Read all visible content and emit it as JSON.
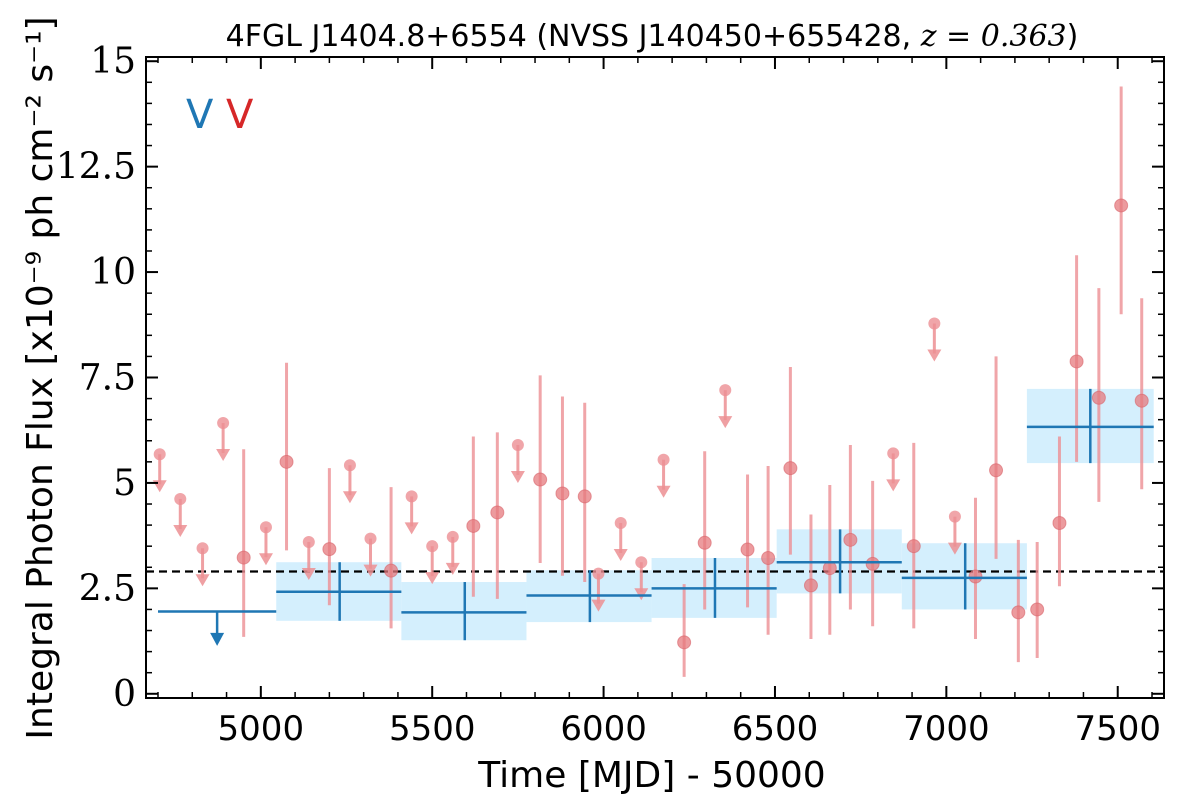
{
  "chart_data": {
    "type": "scatter",
    "title": "4FGL J1404.8+6554 (NVSS J140450+655428, z = 0.363)",
    "title_parts": {
      "main": "4FGL J1404.8+6554 (NVSS J140450+655428, ",
      "math": "z = 0.363",
      "close": ")"
    },
    "xlabel": "Time [MJD] - 50000",
    "ylabel": "Integral Photon Flux [x10⁻⁹ ph cm⁻² s⁻¹]",
    "xlim": [
      4665,
      7635
    ],
    "ylim": [
      -0.1,
      15.1
    ],
    "x_ticks": [
      5000,
      5500,
      6000,
      6500,
      7000,
      7500
    ],
    "x_tick_labels": [
      "5000",
      "5500",
      "6000",
      "6500",
      "7000",
      "7500"
    ],
    "y_ticks": [
      0,
      2.5,
      5,
      7.5,
      10,
      12.5,
      15
    ],
    "y_tick_labels": [
      "0",
      "2.5",
      "5",
      "7.5",
      "10",
      "12.5",
      "15"
    ],
    "grid": false,
    "flags": [
      {
        "text": "V",
        "color": "#1f77b4"
      },
      {
        "text": "V",
        "color": "#d62728"
      }
    ],
    "colors": {
      "blue": "#1f77b4",
      "band": "#d4effd",
      "red": "#ec8f93",
      "reference": "#000000"
    },
    "reference_line": {
      "y": 2.9,
      "style": "dashed"
    },
    "series": [
      {
        "kind": "binned",
        "bins": [
          {
            "x0": 4700,
            "x1": 5045,
            "y": 1.95,
            "upper_limit": true
          },
          {
            "x0": 5045,
            "x1": 5410,
            "y": 2.42,
            "lo": 1.73,
            "hi": 3.12,
            "xc": 5230
          },
          {
            "x0": 5410,
            "x1": 5775,
            "y": 1.93,
            "lo": 1.27,
            "hi": 2.65,
            "xc": 5595
          },
          {
            "x0": 5775,
            "x1": 6140,
            "y": 2.33,
            "lo": 1.7,
            "hi": 2.93,
            "xc": 5960
          },
          {
            "x0": 6140,
            "x1": 6505,
            "y": 2.5,
            "lo": 1.8,
            "hi": 3.22,
            "xc": 6325
          },
          {
            "x0": 6505,
            "x1": 6870,
            "y": 3.12,
            "lo": 2.38,
            "hi": 3.9,
            "xc": 6690
          },
          {
            "x0": 6870,
            "x1": 7235,
            "y": 2.75,
            "lo": 2.0,
            "hi": 3.57,
            "xc": 7055
          },
          {
            "x0": 7235,
            "x1": 7605,
            "y": 6.33,
            "lo": 5.47,
            "hi": 7.23,
            "xc": 7420
          }
        ]
      },
      {
        "kind": "points",
        "detections": [
          {
            "x": 4950,
            "y": 3.23,
            "lo": 1.35,
            "hi": 5.8
          },
          {
            "x": 5075,
            "y": 5.5,
            "lo": 3.4,
            "hi": 7.85
          },
          {
            "x": 5200,
            "y": 3.43,
            "lo": 2.1,
            "hi": 5.35
          },
          {
            "x": 5380,
            "y": 2.92,
            "lo": 1.55,
            "hi": 4.9
          },
          {
            "x": 5620,
            "y": 3.98,
            "lo": 2.3,
            "hi": 6.1
          },
          {
            "x": 5690,
            "y": 4.3,
            "lo": 2.25,
            "hi": 6.2
          },
          {
            "x": 5815,
            "y": 5.08,
            "lo": 3.1,
            "hi": 7.55
          },
          {
            "x": 5880,
            "y": 4.75,
            "lo": 2.8,
            "hi": 7.05
          },
          {
            "x": 5945,
            "y": 4.68,
            "lo": 2.65,
            "hi": 6.9
          },
          {
            "x": 6235,
            "y": 1.22,
            "lo": 0.4,
            "hi": 2.6
          },
          {
            "x": 6295,
            "y": 3.58,
            "lo": 2.0,
            "hi": 5.75
          },
          {
            "x": 6420,
            "y": 3.42,
            "lo": 2.05,
            "hi": 5.2
          },
          {
            "x": 6480,
            "y": 3.22,
            "lo": 1.4,
            "hi": 5.4
          },
          {
            "x": 6545,
            "y": 5.35,
            "lo": 3.3,
            "hi": 7.75
          },
          {
            "x": 6605,
            "y": 2.57,
            "lo": 1.3,
            "hi": 4.25
          },
          {
            "x": 6660,
            "y": 2.98,
            "lo": 1.4,
            "hi": 4.95
          },
          {
            "x": 6720,
            "y": 3.65,
            "lo": 2.0,
            "hi": 5.9
          },
          {
            "x": 6785,
            "y": 3.08,
            "lo": 1.6,
            "hi": 5.05
          },
          {
            "x": 6905,
            "y": 3.5,
            "lo": 1.55,
            "hi": 5.95
          },
          {
            "x": 7085,
            "y": 2.78,
            "lo": 1.3,
            "hi": 4.65
          },
          {
            "x": 7145,
            "y": 5.3,
            "lo": 3.2,
            "hi": 8.0
          },
          {
            "x": 7210,
            "y": 1.93,
            "lo": 0.75,
            "hi": 3.65
          },
          {
            "x": 7265,
            "y": 2.0,
            "lo": 0.85,
            "hi": 3.6
          },
          {
            "x": 7330,
            "y": 4.05,
            "lo": 2.55,
            "hi": 6.1
          },
          {
            "x": 7380,
            "y": 7.88,
            "lo": 5.5,
            "hi": 10.4
          },
          {
            "x": 7445,
            "y": 7.02,
            "lo": 4.55,
            "hi": 9.62
          },
          {
            "x": 7510,
            "y": 11.58,
            "lo": 9.0,
            "hi": 14.4
          },
          {
            "x": 7570,
            "y": 6.95,
            "lo": 4.85,
            "hi": 9.38
          }
        ],
        "upper_limits": [
          {
            "x": 4705,
            "y": 5.68
          },
          {
            "x": 4765,
            "y": 4.62
          },
          {
            "x": 4830,
            "y": 3.45
          },
          {
            "x": 4890,
            "y": 6.42
          },
          {
            "x": 5015,
            "y": 3.95
          },
          {
            "x": 5140,
            "y": 3.6
          },
          {
            "x": 5260,
            "y": 5.42
          },
          {
            "x": 5320,
            "y": 3.68
          },
          {
            "x": 5440,
            "y": 4.68
          },
          {
            "x": 5500,
            "y": 3.5
          },
          {
            "x": 5560,
            "y": 3.72
          },
          {
            "x": 5750,
            "y": 5.9
          },
          {
            "x": 5985,
            "y": 2.85
          },
          {
            "x": 6050,
            "y": 4.05
          },
          {
            "x": 6110,
            "y": 3.12
          },
          {
            "x": 6175,
            "y": 5.55
          },
          {
            "x": 6355,
            "y": 7.2
          },
          {
            "x": 6845,
            "y": 5.7
          },
          {
            "x": 6965,
            "y": 8.78
          },
          {
            "x": 7025,
            "y": 4.2
          }
        ]
      }
    ]
  }
}
